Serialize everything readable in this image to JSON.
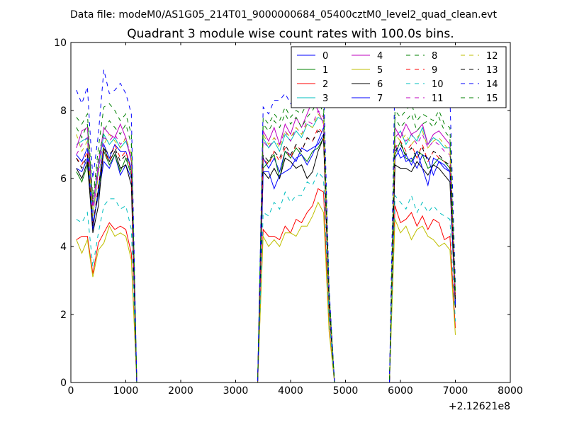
{
  "header": {
    "file_label": "Data file: modeM0/AS1G05_214T01_9000000684_05400cztM0_level2_quad_clean.evt"
  },
  "chart_data": {
    "type": "line",
    "title": "Quadrant 3 module wise count rates with 100.0s bins.",
    "xlabel": "",
    "ylabel": "",
    "x_offset_label": "+2.12621e8",
    "xlim": [
      0,
      8000
    ],
    "ylim": [
      0,
      10
    ],
    "x_ticks": [
      "0",
      "1000",
      "2000",
      "3000",
      "4000",
      "5000",
      "6000",
      "7000",
      "8000"
    ],
    "y_ticks": [
      "0",
      "2",
      "4",
      "6",
      "8",
      "10"
    ],
    "grid": false,
    "legend_position": "top-right",
    "legend_columns": 4,
    "x": [
      100,
      200,
      300,
      400,
      500,
      600,
      700,
      800,
      900,
      1000,
      1100,
      1200,
      1300,
      1400,
      1500,
      1600,
      1700,
      1800,
      1900,
      2000,
      2100,
      2200,
      2300,
      2400,
      2500,
      2600,
      2700,
      2800,
      2900,
      3000,
      3100,
      3200,
      3300,
      3400,
      3500,
      3600,
      3700,
      3800,
      3900,
      4000,
      4100,
      4200,
      4300,
      4400,
      4500,
      4600,
      4700,
      4800,
      4900,
      5000,
      5100,
      5200,
      5300,
      5400,
      5500,
      5600,
      5700,
      5800,
      5900,
      6000,
      6100,
      6200,
      6300,
      6400,
      6500,
      6600,
      6700,
      6800,
      6900,
      7000
    ],
    "series": [
      {
        "name": "0",
        "color": "#0000ff",
        "dash": "solid",
        "values": [
          6.3,
          6.2,
          6.6,
          4.7,
          5.5,
          6.5,
          6.3,
          6.7,
          6.1,
          6.4,
          6.0,
          0,
          0,
          0,
          0,
          0,
          0,
          0,
          0,
          0,
          0,
          0,
          0,
          0,
          0,
          0,
          0,
          0,
          0,
          0,
          0,
          0,
          0,
          0,
          6.6,
          6.3,
          6.6,
          6.2,
          6.8,
          6.7,
          6.5,
          6.9,
          6.8,
          6.9,
          7.0,
          7.3,
          2.3,
          0,
          0,
          0,
          0,
          0,
          0,
          0,
          0,
          0,
          0,
          0,
          6.6,
          6.9,
          6.5,
          6.6,
          6.3,
          6.7,
          6.6,
          6.1,
          6.5,
          6.4,
          6.2,
          2.3
        ]
      },
      {
        "name": "1",
        "color": "#008000",
        "dash": "solid",
        "values": [
          6.2,
          5.9,
          6.4,
          4.6,
          5.6,
          6.8,
          6.4,
          6.7,
          6.2,
          6.6,
          6.1,
          0,
          0,
          0,
          0,
          0,
          0,
          0,
          0,
          0,
          0,
          0,
          0,
          0,
          0,
          0,
          0,
          0,
          0,
          0,
          0,
          0,
          0,
          0,
          6.3,
          6.5,
          6.7,
          6.0,
          6.8,
          6.6,
          6.9,
          6.7,
          6.5,
          6.8,
          6.9,
          7.2,
          2.4,
          0,
          0,
          0,
          0,
          0,
          0,
          0,
          0,
          0,
          0,
          0,
          6.7,
          7.1,
          6.6,
          6.5,
          6.8,
          6.7,
          6.3,
          6.4,
          6.6,
          6.5,
          6.3,
          2.4
        ]
      },
      {
        "name": "2",
        "color": "#ff0000",
        "dash": "solid",
        "values": [
          4.2,
          4.3,
          4.3,
          3.2,
          4.1,
          4.4,
          4.7,
          4.5,
          4.6,
          4.5,
          3.8,
          0,
          0,
          0,
          0,
          0,
          0,
          0,
          0,
          0,
          0,
          0,
          0,
          0,
          0,
          0,
          0,
          0,
          0,
          0,
          0,
          0,
          0,
          0,
          4.5,
          4.3,
          4.3,
          4.2,
          4.6,
          4.4,
          4.8,
          4.7,
          5.0,
          5.2,
          5.7,
          5.6,
          1.6,
          0,
          0,
          0,
          0,
          0,
          0,
          0,
          0,
          0,
          0,
          0,
          5.2,
          4.7,
          4.8,
          5.0,
          4.6,
          4.9,
          4.5,
          4.8,
          4.7,
          4.2,
          4.3,
          1.6
        ]
      },
      {
        "name": "3",
        "color": "#00bfbf",
        "dash": "solid",
        "values": [
          7.0,
          7.1,
          7.2,
          4.9,
          6.3,
          7.3,
          7.0,
          7.2,
          6.9,
          7.1,
          6.6,
          0,
          0,
          0,
          0,
          0,
          0,
          0,
          0,
          0,
          0,
          0,
          0,
          0,
          0,
          0,
          0,
          0,
          0,
          0,
          0,
          0,
          0,
          0,
          7.2,
          6.9,
          7.1,
          6.8,
          7.3,
          7.1,
          7.4,
          7.2,
          7.6,
          7.5,
          7.8,
          7.7,
          2.6,
          0,
          0,
          0,
          0,
          0,
          0,
          0,
          0,
          0,
          0,
          0,
          7.2,
          7.4,
          7.0,
          7.3,
          7.1,
          7.5,
          7.0,
          7.2,
          7.1,
          6.9,
          6.9,
          2.6
        ]
      },
      {
        "name": "4",
        "color": "#bf00bf",
        "dash": "solid",
        "values": [
          6.9,
          7.4,
          7.5,
          5.2,
          6.4,
          7.5,
          7.3,
          7.2,
          7.6,
          7.2,
          6.5,
          0,
          0,
          0,
          0,
          0,
          0,
          0,
          0,
          0,
          0,
          0,
          0,
          0,
          0,
          0,
          0,
          0,
          0,
          0,
          0,
          0,
          0,
          0,
          7.4,
          7.1,
          7.5,
          7.0,
          7.6,
          7.3,
          7.8,
          7.5,
          7.9,
          8.3,
          8.0,
          7.6,
          2.5,
          0,
          0,
          0,
          0,
          0,
          0,
          0,
          0,
          0,
          0,
          0,
          7.5,
          7.2,
          7.6,
          7.3,
          7.4,
          7.6,
          7.0,
          7.3,
          7.4,
          7.2,
          7.0,
          2.5
        ]
      },
      {
        "name": "5",
        "color": "#bfbf00",
        "dash": "solid",
        "values": [
          4.2,
          3.8,
          4.2,
          3.1,
          3.9,
          4.1,
          4.6,
          4.3,
          4.4,
          4.3,
          3.6,
          0,
          0,
          0,
          0,
          0,
          0,
          0,
          0,
          0,
          0,
          0,
          0,
          0,
          0,
          0,
          0,
          0,
          0,
          0,
          0,
          0,
          0,
          0,
          4.3,
          4.0,
          4.2,
          4.0,
          4.4,
          4.4,
          4.3,
          4.6,
          4.6,
          4.9,
          5.3,
          5.0,
          1.5,
          0,
          0,
          0,
          0,
          0,
          0,
          0,
          0,
          0,
          0,
          0,
          4.8,
          4.4,
          4.6,
          4.2,
          4.5,
          4.6,
          4.3,
          4.2,
          4.0,
          4.1,
          3.9,
          1.4
        ]
      },
      {
        "name": "6",
        "color": "#000000",
        "dash": "solid",
        "values": [
          6.3,
          6.0,
          6.5,
          4.4,
          5.2,
          6.9,
          6.5,
          6.8,
          6.3,
          6.4,
          5.8,
          0,
          0,
          0,
          0,
          0,
          0,
          0,
          0,
          0,
          0,
          0,
          0,
          0,
          0,
          0,
          0,
          0,
          0,
          0,
          0,
          0,
          0,
          0,
          6.2,
          6.0,
          6.3,
          6.0,
          6.6,
          6.5,
          6.3,
          6.4,
          6.0,
          6.2,
          6.8,
          7.2,
          2.2,
          0,
          0,
          0,
          0,
          0,
          0,
          0,
          0,
          0,
          0,
          0,
          6.4,
          6.3,
          6.3,
          6.2,
          6.5,
          6.3,
          6.1,
          6.4,
          6.3,
          6.1,
          5.9,
          2.2
        ]
      },
      {
        "name": "7",
        "color": "#0000ff",
        "dash": "solid",
        "values": [
          6.7,
          6.5,
          6.9,
          4.5,
          5.7,
          7.0,
          6.6,
          7.0,
          6.8,
          6.8,
          6.3,
          0,
          0,
          0,
          0,
          0,
          0,
          0,
          0,
          0,
          0,
          0,
          0,
          0,
          0,
          0,
          0,
          0,
          0,
          0,
          0,
          0,
          0,
          0,
          6.2,
          6.2,
          5.7,
          6.1,
          6.2,
          6.3,
          6.6,
          6.7,
          6.4,
          6.7,
          7.1,
          7.5,
          2.4,
          0,
          0,
          0,
          0,
          0,
          0,
          0,
          0,
          0,
          0,
          0,
          7.0,
          6.6,
          6.7,
          6.4,
          6.8,
          6.3,
          5.8,
          6.6,
          6.5,
          6.3,
          6.2,
          2.3
        ]
      },
      {
        "name": "8",
        "color": "#008000",
        "dash": "dashed",
        "values": [
          7.5,
          7.2,
          7.6,
          5.3,
          6.6,
          7.4,
          7.7,
          7.5,
          7.3,
          7.6,
          7.0,
          0,
          0,
          0,
          0,
          0,
          0,
          0,
          0,
          0,
          0,
          0,
          0,
          0,
          0,
          0,
          0,
          0,
          0,
          0,
          0,
          0,
          0,
          0,
          7.6,
          7.4,
          7.7,
          7.5,
          7.9,
          7.6,
          7.8,
          7.5,
          7.8,
          8.0,
          8.3,
          7.9,
          2.6,
          0,
          0,
          0,
          0,
          0,
          0,
          0,
          0,
          0,
          0,
          0,
          7.8,
          7.5,
          7.7,
          7.9,
          7.4,
          7.6,
          7.7,
          7.5,
          7.8,
          7.4,
          7.2,
          2.6
        ]
      },
      {
        "name": "9",
        "color": "#ff0000",
        "dash": "dashed",
        "values": [
          6.6,
          6.4,
          6.8,
          4.6,
          5.8,
          6.8,
          6.5,
          7.0,
          6.6,
          6.8,
          6.2,
          0,
          0,
          0,
          0,
          0,
          0,
          0,
          0,
          0,
          0,
          0,
          0,
          0,
          0,
          0,
          0,
          0,
          0,
          0,
          0,
          0,
          0,
          0,
          6.6,
          6.4,
          6.8,
          6.5,
          6.9,
          6.6,
          7.0,
          6.8,
          7.2,
          7.1,
          7.5,
          7.3,
          2.4,
          0,
          0,
          0,
          0,
          0,
          0,
          0,
          0,
          0,
          0,
          0,
          6.9,
          7.1,
          6.8,
          7.0,
          6.6,
          7.0,
          6.5,
          6.8,
          6.6,
          6.5,
          6.4,
          2.4
        ]
      },
      {
        "name": "10",
        "color": "#00bfbf",
        "dash": "dashed",
        "values": [
          4.8,
          4.7,
          5.0,
          3.4,
          4.4,
          5.2,
          5.4,
          5.4,
          5.1,
          5.2,
          4.5,
          0,
          0,
          0,
          0,
          0,
          0,
          0,
          0,
          0,
          0,
          0,
          0,
          0,
          0,
          0,
          0,
          0,
          0,
          0,
          0,
          0,
          0,
          0,
          5.0,
          4.9,
          5.3,
          5.1,
          5.6,
          5.3,
          5.5,
          5.5,
          5.9,
          5.8,
          6.2,
          6.0,
          1.9,
          0,
          0,
          0,
          0,
          0,
          0,
          0,
          0,
          0,
          0,
          0,
          5.5,
          5.3,
          5.1,
          5.5,
          5.0,
          5.3,
          5.0,
          5.2,
          5.0,
          4.9,
          4.8,
          1.8
        ]
      },
      {
        "name": "11",
        "color": "#bf00bf",
        "dash": "dashed",
        "values": [
          6.7,
          7.0,
          7.2,
          5.0,
          6.2,
          7.2,
          7.1,
          7.3,
          7.0,
          7.2,
          6.6,
          0,
          0,
          0,
          0,
          0,
          0,
          0,
          0,
          0,
          0,
          0,
          0,
          0,
          0,
          0,
          0,
          0,
          0,
          0,
          0,
          0,
          0,
          0,
          7.1,
          6.9,
          7.2,
          7.0,
          7.4,
          7.1,
          7.5,
          7.3,
          7.7,
          7.6,
          8.0,
          7.8,
          2.5,
          0,
          0,
          0,
          0,
          0,
          0,
          0,
          0,
          0,
          0,
          0,
          7.2,
          7.4,
          7.1,
          7.3,
          7.0,
          7.3,
          6.9,
          7.1,
          7.0,
          6.8,
          6.7,
          2.5
        ]
      },
      {
        "name": "12",
        "color": "#bfbf00",
        "dash": "dashed",
        "values": [
          7.3,
          6.8,
          7.1,
          4.9,
          6.1,
          7.0,
          7.3,
          7.1,
          6.9,
          7.2,
          6.7,
          0,
          0,
          0,
          0,
          0,
          0,
          0,
          0,
          0,
          0,
          0,
          0,
          0,
          0,
          0,
          0,
          0,
          0,
          0,
          0,
          0,
          0,
          0,
          7.3,
          7.0,
          7.2,
          6.9,
          7.4,
          7.2,
          7.5,
          7.3,
          7.6,
          7.5,
          7.9,
          7.7,
          2.5,
          0,
          0,
          0,
          0,
          0,
          0,
          0,
          0,
          0,
          0,
          0,
          7.3,
          7.1,
          7.3,
          7.0,
          7.2,
          7.4,
          6.9,
          7.1,
          7.2,
          7.0,
          6.8,
          2.5
        ]
      },
      {
        "name": "13",
        "color": "#000000",
        "dash": "dashed",
        "values": [
          6.6,
          6.3,
          6.7,
          4.6,
          5.7,
          6.9,
          6.7,
          6.9,
          6.5,
          6.7,
          6.2,
          0,
          0,
          0,
          0,
          0,
          0,
          0,
          0,
          0,
          0,
          0,
          0,
          0,
          0,
          0,
          0,
          0,
          0,
          0,
          0,
          0,
          0,
          0,
          6.7,
          6.5,
          6.8,
          6.6,
          7.0,
          6.7,
          7.0,
          6.8,
          7.2,
          7.1,
          7.4,
          7.3,
          2.4,
          0,
          0,
          0,
          0,
          0,
          0,
          0,
          0,
          0,
          0,
          0,
          6.8,
          7.0,
          6.7,
          6.9,
          6.6,
          6.9,
          6.5,
          6.8,
          6.7,
          6.5,
          6.4,
          2.4
        ]
      },
      {
        "name": "14",
        "color": "#0000ff",
        "dash": "dashed",
        "values": [
          8.6,
          8.2,
          8.7,
          6.0,
          7.3,
          9.2,
          8.5,
          8.6,
          8.8,
          8.5,
          7.9,
          0,
          0,
          0,
          0,
          0,
          0,
          0,
          0,
          0,
          0,
          0,
          0,
          0,
          0,
          0,
          0,
          0,
          0,
          0,
          0,
          0,
          0,
          0,
          8.1,
          7.9,
          8.3,
          8.3,
          8.5,
          8.2,
          8.4,
          8.3,
          8.6,
          8.9,
          9.0,
          8.8,
          2.8,
          0,
          0,
          0,
          0,
          0,
          0,
          0,
          0,
          0,
          0,
          0,
          9.1,
          8.7,
          9.0,
          8.6,
          8.8,
          8.9,
          8.5,
          8.8,
          8.7,
          9.0,
          8.4,
          2.9
        ]
      },
      {
        "name": "15",
        "color": "#008000",
        "dash": "dashed",
        "values": [
          7.8,
          7.6,
          7.9,
          5.4,
          6.9,
          8.1,
          8.2,
          8.0,
          7.7,
          7.9,
          7.3,
          0,
          0,
          0,
          0,
          0,
          0,
          0,
          0,
          0,
          0,
          0,
          0,
          0,
          0,
          0,
          0,
          0,
          0,
          0,
          0,
          0,
          0,
          0,
          7.8,
          7.6,
          7.9,
          7.7,
          8.1,
          7.8,
          8.0,
          7.9,
          8.2,
          8.1,
          8.4,
          8.2,
          2.7,
          0,
          0,
          0,
          0,
          0,
          0,
          0,
          0,
          0,
          0,
          0,
          8.0,
          7.8,
          8.0,
          8.2,
          7.7,
          7.9,
          7.8,
          7.7,
          8.0,
          7.6,
          7.5,
          2.7
        ]
      }
    ]
  }
}
